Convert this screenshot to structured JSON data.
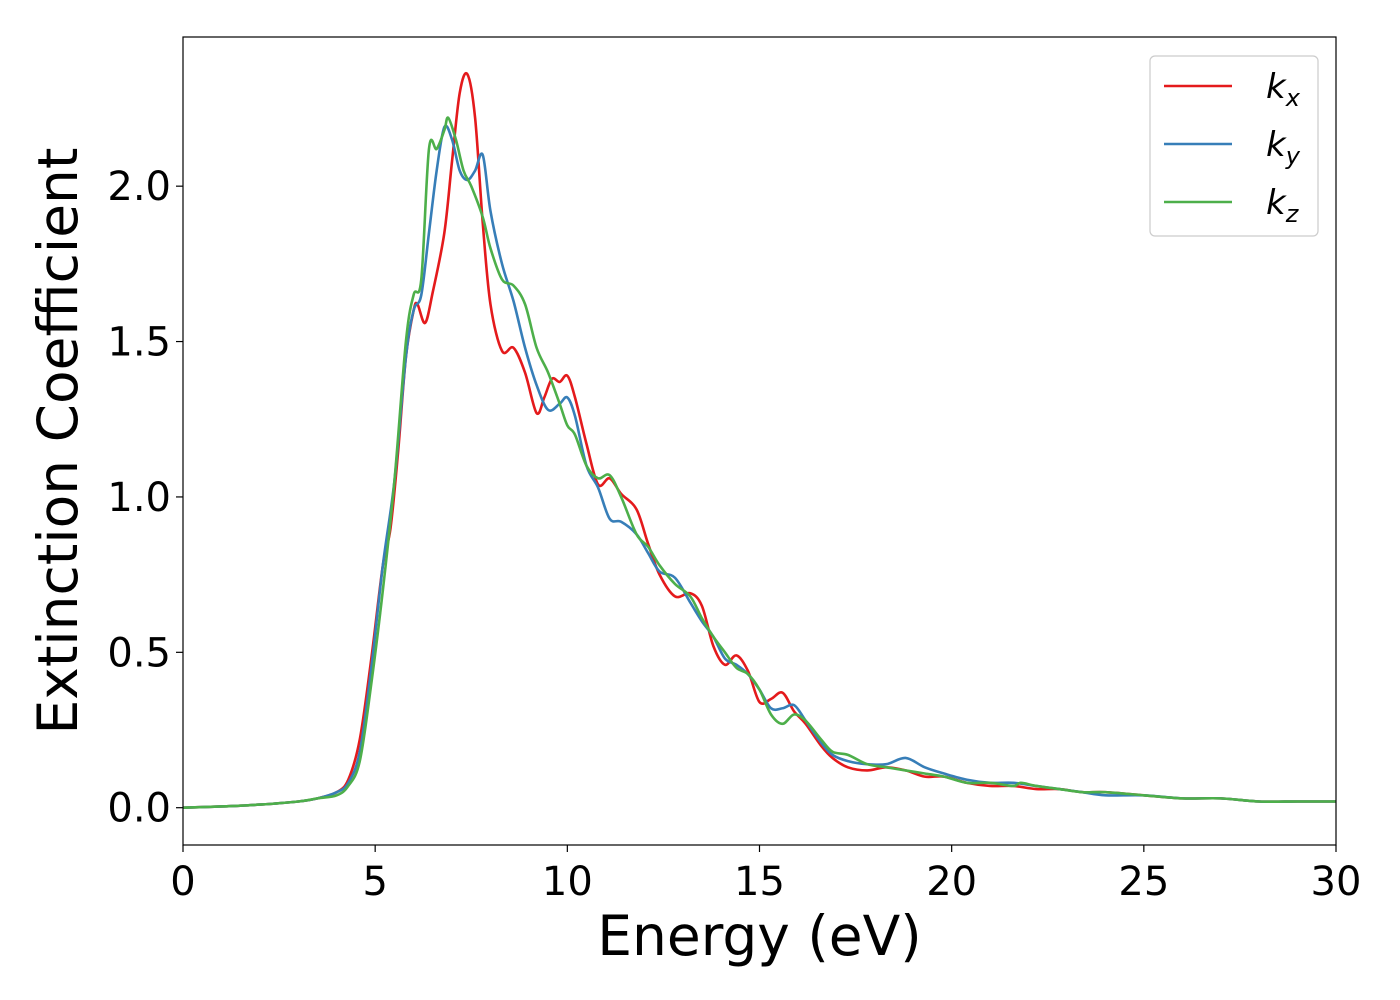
{
  "chart_data": {
    "type": "line",
    "xlabel": "Energy (eV)",
    "ylabel": "Extinction Coefficient",
    "xlim": [
      0,
      30
    ],
    "ylim": [
      -0.12,
      2.48
    ],
    "xticks": [
      0,
      5,
      10,
      15,
      20,
      25,
      30
    ],
    "xtick_labels": [
      "0",
      "5",
      "10",
      "15",
      "20",
      "25",
      "30"
    ],
    "yticks": [
      0.0,
      0.5,
      1.0,
      1.5,
      2.0
    ],
    "ytick_labels": [
      "0.0",
      "0.5",
      "1.0",
      "1.5",
      "2.0"
    ],
    "grid": false,
    "legend_position": "top-right",
    "series": [
      {
        "name": "k_x",
        "label_base": "k",
        "label_sub": "x",
        "color": "#e41a1c",
        "x": [
          0,
          1,
          2,
          3,
          3.5,
          4,
          4.3,
          4.6,
          4.9,
          5.2,
          5.4,
          5.6,
          5.8,
          6.0,
          6.1,
          6.3,
          6.5,
          6.8,
          7.0,
          7.2,
          7.4,
          7.6,
          7.8,
          8.0,
          8.3,
          8.6,
          8.9,
          9.2,
          9.4,
          9.6,
          9.8,
          10.0,
          10.2,
          10.5,
          10.8,
          11.1,
          11.4,
          11.8,
          12.1,
          12.4,
          12.8,
          13.2,
          13.5,
          13.8,
          14.1,
          14.4,
          14.7,
          15.0,
          15.3,
          15.6,
          15.9,
          16.2,
          16.6,
          16.9,
          17.3,
          17.8,
          18.3,
          18.8,
          19.3,
          19.8,
          20.4,
          21.0,
          21.6,
          22.2,
          22.8,
          23.4,
          24.0,
          25.0,
          26.0,
          27.0,
          28.0,
          29.0,
          30.0
        ],
        "y": [
          0.0,
          0.004,
          0.01,
          0.02,
          0.03,
          0.05,
          0.09,
          0.22,
          0.48,
          0.78,
          0.9,
          1.15,
          1.45,
          1.6,
          1.62,
          1.56,
          1.66,
          1.85,
          2.08,
          2.3,
          2.36,
          2.22,
          1.88,
          1.62,
          1.47,
          1.48,
          1.4,
          1.27,
          1.32,
          1.38,
          1.37,
          1.39,
          1.32,
          1.17,
          1.04,
          1.06,
          1.01,
          0.96,
          0.85,
          0.75,
          0.68,
          0.69,
          0.65,
          0.52,
          0.46,
          0.49,
          0.44,
          0.34,
          0.35,
          0.37,
          0.31,
          0.27,
          0.2,
          0.16,
          0.13,
          0.12,
          0.13,
          0.12,
          0.1,
          0.1,
          0.08,
          0.07,
          0.07,
          0.06,
          0.06,
          0.05,
          0.05,
          0.04,
          0.03,
          0.03,
          0.02,
          0.02,
          0.02
        ]
      },
      {
        "name": "k_y",
        "label_base": "k",
        "label_sub": "y",
        "color": "#377eb8",
        "x": [
          0,
          1,
          2,
          3,
          3.5,
          4,
          4.3,
          4.6,
          4.9,
          5.2,
          5.5,
          5.8,
          6.0,
          6.2,
          6.4,
          6.6,
          6.8,
          7.0,
          7.2,
          7.4,
          7.6,
          7.8,
          8.0,
          8.3,
          8.6,
          8.9,
          9.2,
          9.5,
          9.8,
          10.0,
          10.2,
          10.5,
          10.8,
          11.1,
          11.4,
          11.8,
          12.1,
          12.4,
          12.8,
          13.2,
          13.5,
          13.8,
          14.1,
          14.4,
          14.7,
          15.0,
          15.3,
          15.6,
          15.9,
          16.2,
          16.6,
          16.9,
          17.3,
          17.8,
          18.3,
          18.8,
          19.3,
          19.8,
          20.4,
          21.0,
          21.6,
          22.2,
          22.8,
          23.4,
          24.0,
          25.0,
          26.0,
          27.0,
          28.0,
          29.0,
          30.0
        ],
        "y": [
          0.0,
          0.004,
          0.01,
          0.02,
          0.03,
          0.05,
          0.08,
          0.18,
          0.45,
          0.78,
          1.05,
          1.45,
          1.6,
          1.65,
          1.85,
          2.05,
          2.19,
          2.15,
          2.05,
          2.02,
          2.05,
          2.1,
          1.92,
          1.75,
          1.63,
          1.48,
          1.36,
          1.28,
          1.3,
          1.32,
          1.26,
          1.1,
          1.03,
          0.93,
          0.92,
          0.88,
          0.82,
          0.76,
          0.74,
          0.66,
          0.6,
          0.55,
          0.48,
          0.46,
          0.43,
          0.38,
          0.32,
          0.32,
          0.33,
          0.28,
          0.21,
          0.17,
          0.15,
          0.14,
          0.14,
          0.16,
          0.13,
          0.11,
          0.09,
          0.08,
          0.08,
          0.07,
          0.06,
          0.05,
          0.04,
          0.04,
          0.03,
          0.03,
          0.02,
          0.02,
          0.02
        ]
      },
      {
        "name": "k_z",
        "label_base": "k",
        "label_sub": "z",
        "color": "#4daf4a",
        "x": [
          0,
          1,
          2,
          3,
          3.5,
          4,
          4.3,
          4.6,
          4.9,
          5.2,
          5.5,
          5.8,
          6.0,
          6.2,
          6.4,
          6.6,
          6.8,
          6.9,
          7.1,
          7.3,
          7.5,
          7.8,
          8.0,
          8.3,
          8.6,
          8.9,
          9.2,
          9.5,
          9.8,
          10.0,
          10.2,
          10.5,
          10.8,
          11.1,
          11.4,
          11.8,
          12.1,
          12.4,
          12.8,
          13.2,
          13.5,
          13.8,
          14.1,
          14.4,
          14.7,
          15.0,
          15.3,
          15.6,
          15.9,
          16.2,
          16.6,
          16.9,
          17.3,
          17.8,
          18.3,
          18.8,
          19.3,
          19.8,
          20.4,
          21.0,
          21.6,
          21.8,
          22.2,
          22.8,
          23.4,
          24.0,
          25.0,
          26.0,
          27.0,
          28.0,
          29.0,
          30.0
        ],
        "y": [
          0.0,
          0.004,
          0.01,
          0.02,
          0.03,
          0.04,
          0.07,
          0.15,
          0.4,
          0.7,
          1.05,
          1.5,
          1.65,
          1.7,
          2.12,
          2.12,
          2.18,
          2.22,
          2.15,
          2.05,
          2.0,
          1.9,
          1.8,
          1.7,
          1.68,
          1.62,
          1.48,
          1.4,
          1.3,
          1.23,
          1.2,
          1.1,
          1.06,
          1.07,
          1.0,
          0.88,
          0.84,
          0.78,
          0.72,
          0.68,
          0.61,
          0.55,
          0.5,
          0.45,
          0.43,
          0.38,
          0.3,
          0.27,
          0.3,
          0.28,
          0.22,
          0.18,
          0.17,
          0.14,
          0.13,
          0.12,
          0.11,
          0.1,
          0.08,
          0.08,
          0.07,
          0.08,
          0.07,
          0.06,
          0.05,
          0.05,
          0.04,
          0.03,
          0.03,
          0.02,
          0.02,
          0.02
        ]
      }
    ]
  }
}
